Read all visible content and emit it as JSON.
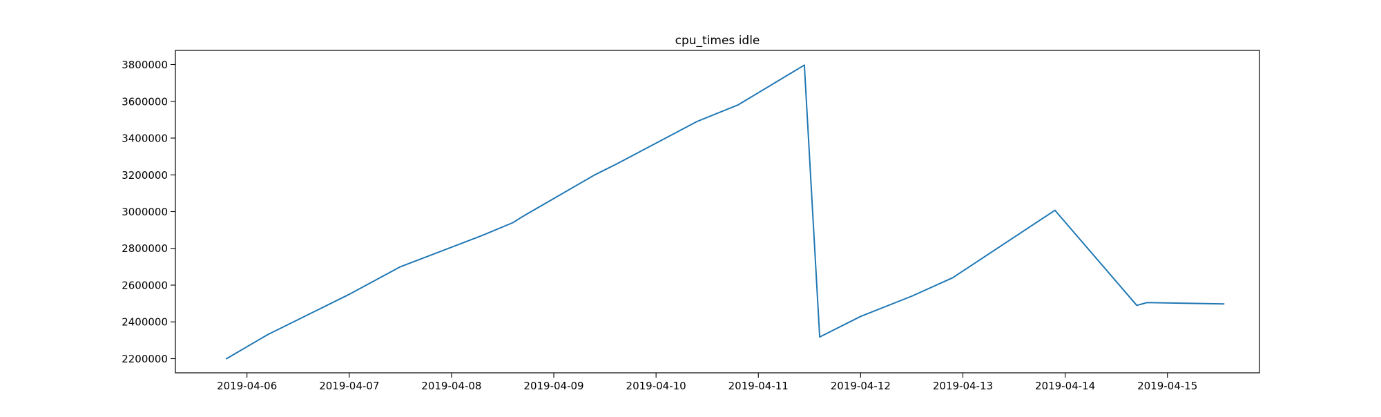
{
  "chart_data": {
    "type": "line",
    "title": "cpu_times idle",
    "xlabel": "",
    "ylabel": "",
    "x_ticks": [
      "2019-04-06",
      "2019-04-07",
      "2019-04-08",
      "2019-04-09",
      "2019-04-10",
      "2019-04-11",
      "2019-04-12",
      "2019-04-13",
      "2019-04-14",
      "2019-04-15"
    ],
    "y_ticks": [
      2200000,
      2400000,
      2600000,
      2800000,
      3000000,
      3200000,
      3400000,
      3600000,
      3800000
    ],
    "xlim": [
      "2019-04-05 07:12",
      "2019-04-15 21:36"
    ],
    "ylim": [
      2123000,
      3877000
    ],
    "grid": false,
    "color": "#1f77b4",
    "series": [
      {
        "x": [
          "2019-04-05 19:12",
          "2019-04-06 04:48",
          "2019-04-06 14:24",
          "2019-04-07 00:00",
          "2019-04-07 12:00",
          "2019-04-08 07:12",
          "2019-04-08 14:24",
          "2019-04-08 16:48",
          "2019-04-09 09:36",
          "2019-04-09 14:24",
          "2019-04-10 09:36",
          "2019-04-10 19:12",
          "2019-04-11 10:48",
          "2019-04-11 14:24",
          "2019-04-12 00:00",
          "2019-04-12 12:00",
          "2019-04-12 21:36",
          "2019-04-13 21:36",
          "2019-04-14 16:48",
          "2019-04-14 19:12",
          "2019-04-15 13:12"
        ],
        "y": [
          2200000,
          2330000,
          2440000,
          2550000,
          2700000,
          2870000,
          2940000,
          2975000,
          3200000,
          3255000,
          3490000,
          3580000,
          3797000,
          2318000,
          2430000,
          2540000,
          2640000,
          3007000,
          2490000,
          2505000,
          2498000
        ]
      }
    ]
  }
}
